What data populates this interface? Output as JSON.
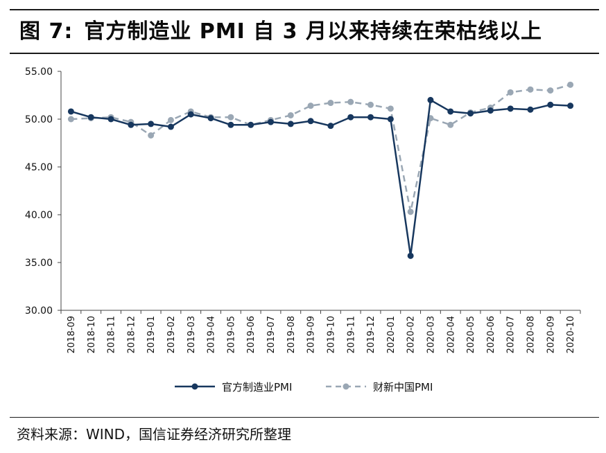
{
  "figure": {
    "number_label": "图 7:",
    "title": "官方制造业 PMI 自 3 月以来持续在荣枯线以上"
  },
  "source": "资料来源：WIND，国信证券经济研究所整理",
  "chart_data": {
    "type": "line",
    "categories": [
      "2018-09",
      "2018-10",
      "2018-11",
      "2018-12",
      "2019-01",
      "2019-02",
      "2019-03",
      "2019-04",
      "2019-05",
      "2019-06",
      "2019-07",
      "2019-08",
      "2019-09",
      "2019-10",
      "2019-11",
      "2019-12",
      "2020-01",
      "2020-02",
      "2020-03",
      "2020-04",
      "2020-05",
      "2020-06",
      "2020-07",
      "2020-08",
      "2020-09",
      "2020-10"
    ],
    "series": [
      {
        "name": "官方制造业PMI",
        "color": "#17375e",
        "style": "solid",
        "values": [
          50.8,
          50.2,
          50.0,
          49.4,
          49.5,
          49.2,
          50.5,
          50.1,
          49.4,
          49.4,
          49.7,
          49.5,
          49.8,
          49.3,
          50.2,
          50.2,
          50.0,
          35.7,
          52.0,
          50.8,
          50.6,
          50.9,
          51.1,
          51.0,
          51.5,
          51.4
        ]
      },
      {
        "name": "财新中国PMI",
        "color": "#9aa7b4",
        "style": "dashed",
        "values": [
          50.0,
          50.1,
          50.2,
          49.7,
          48.3,
          49.9,
          50.8,
          50.2,
          50.2,
          49.4,
          49.9,
          50.4,
          51.4,
          51.7,
          51.8,
          51.5,
          51.1,
          40.3,
          50.1,
          49.4,
          50.7,
          51.2,
          52.8,
          53.1,
          53.0,
          53.6
        ]
      }
    ],
    "yticks": [
      "30.00",
      "35.00",
      "40.00",
      "45.00",
      "50.00",
      "55.00"
    ],
    "ylim": [
      30,
      55
    ],
    "grid": false,
    "legend_position": "bottom"
  }
}
